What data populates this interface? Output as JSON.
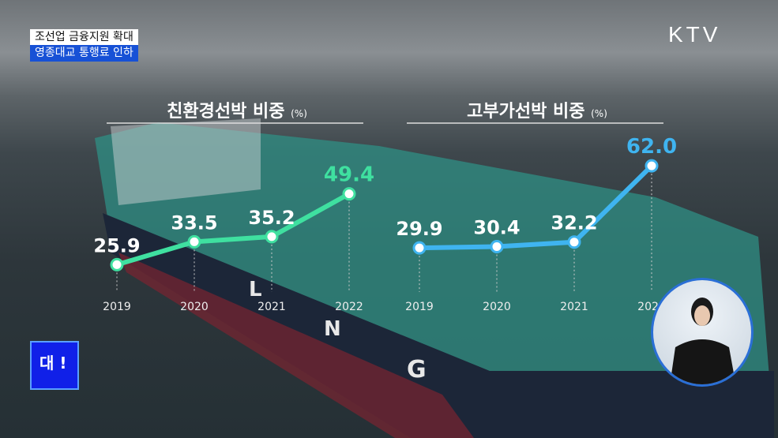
{
  "captions": {
    "line1": "조선업 금융지원 확대",
    "line2": "영종대교 통행료 인하"
  },
  "logo": "KTV",
  "badge": {
    "label": "대 !"
  },
  "colors": {
    "left_line": "#3fe0a0",
    "right_line": "#3fb4f0",
    "left_last_label": "#3fe0a0",
    "right_last_label": "#3fb4f0"
  },
  "chart_data": [
    {
      "type": "line",
      "title": "친환경선박 비중",
      "unit": "(%)",
      "categories": [
        "2019",
        "2020",
        "2021",
        "2022"
      ],
      "values": [
        25.9,
        33.5,
        35.2,
        49.4
      ],
      "ylim": [
        9,
        87.5
      ],
      "grid": false
    },
    {
      "type": "line",
      "title": "고부가선박 비중",
      "unit": "(%)",
      "categories": [
        "2019",
        "2020",
        "2021",
        "2022"
      ],
      "values": [
        29.9,
        30.4,
        32.2,
        62.0
      ],
      "ylim": [
        3.4,
        96
      ],
      "grid": false
    }
  ]
}
